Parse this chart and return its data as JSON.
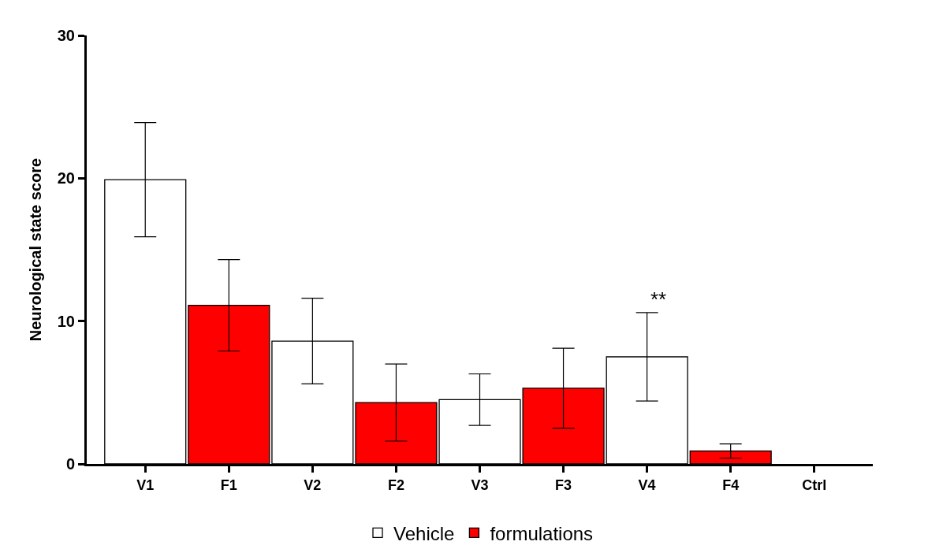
{
  "chart_data": {
    "type": "bar",
    "ylabel": "Neurological state score",
    "categories": [
      "V1",
      "F1",
      "V2",
      "F2",
      "V3",
      "F3",
      "V4",
      "F4",
      "Ctrl"
    ],
    "series": [
      {
        "name": "Vehicle",
        "color": "#ffffff",
        "values": [
          19.9,
          null,
          8.6,
          null,
          4.5,
          null,
          7.5,
          null,
          null
        ],
        "errors": [
          4.0,
          null,
          3.0,
          null,
          1.8,
          null,
          3.1,
          null,
          null
        ]
      },
      {
        "name": "formulations",
        "color": "#ff0000",
        "values": [
          null,
          11.1,
          null,
          4.3,
          null,
          5.3,
          null,
          0.9,
          null
        ],
        "errors": [
          null,
          3.2,
          null,
          2.7,
          null,
          2.8,
          null,
          0.5,
          null
        ]
      }
    ],
    "ylim": [
      0,
      30
    ],
    "yticks": [
      0,
      10,
      20,
      30
    ],
    "legend": "bottom",
    "annotations": [
      {
        "text": "**",
        "x": "V4",
        "y": 10.6
      }
    ]
  }
}
